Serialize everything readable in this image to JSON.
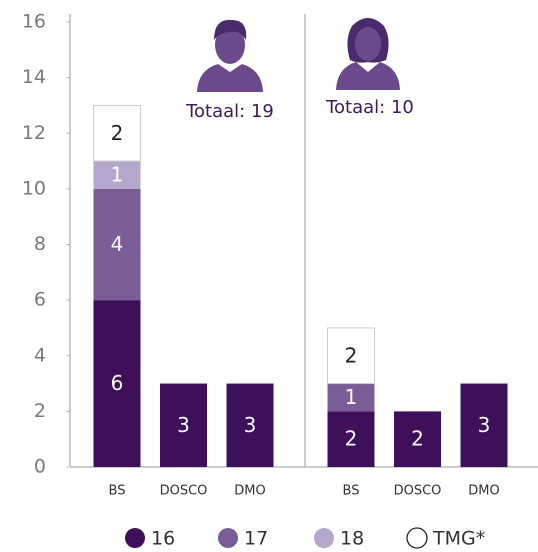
{
  "chart_data": {
    "type": "bar",
    "stacked": true,
    "ylim": [
      0,
      16
    ],
    "yticks": [
      0,
      2,
      4,
      6,
      8,
      10,
      12,
      14,
      16
    ],
    "groups": [
      "Totaal: 19",
      "Totaal: 10"
    ],
    "categories": [
      "BS",
      "DOSCO",
      "DMO",
      "BS",
      "DOSCO",
      "DMO"
    ],
    "series": [
      {
        "name": "16",
        "color": "#3d1059",
        "values": [
          6,
          3,
          3,
          2,
          2,
          3
        ]
      },
      {
        "name": "17",
        "color": "#7a5c96",
        "values": [
          4,
          null,
          null,
          1,
          null,
          null
        ]
      },
      {
        "name": "18",
        "color": "#b5a6cb",
        "values": [
          1,
          null,
          null,
          null,
          null,
          null
        ]
      },
      {
        "name": "TMG*",
        "color": "#ffffff",
        "values": [
          2,
          null,
          null,
          2,
          null,
          null
        ]
      }
    ]
  }
}
